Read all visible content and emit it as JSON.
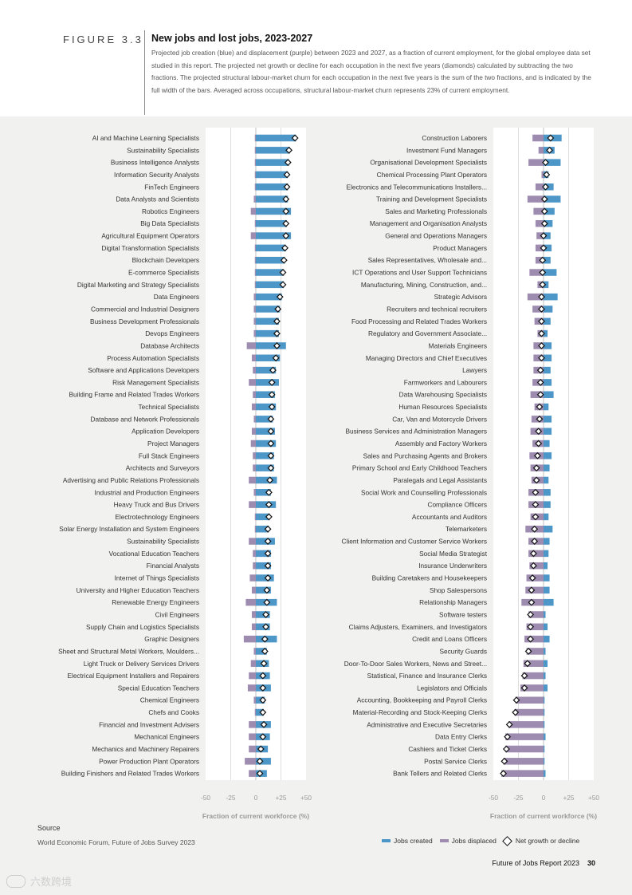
{
  "header": {
    "figure_label": "FIGURE 3.3",
    "title": "New jobs and lost jobs, 2023-2027",
    "description": "Projected job creation (blue) and displacement (purple) between 2023 and 2027, as a fraction of current employment, for the global employee data set studied in this report. The projected net growth or decline for each occupation in the next five years (diamonds) calculated by subtracting the two fractions. The projected structural labour-market churn for each occupation in the next five years is the sum of the two fractions, and is indicated by the full width of the bars. Averaged across occupations, structural labour-market churn represents 23% of current employment."
  },
  "colors": {
    "created": "#4d97c8",
    "displaced": "#9d8cb0",
    "net": "#111111"
  },
  "chart_data": [
    {
      "type": "bar",
      "xlabel": "Fraction of current workforce (%)",
      "xlim": [
        -50,
        50
      ],
      "xticks": [
        "-50",
        "-25",
        "0",
        "+25",
        "+50"
      ],
      "series": [
        {
          "name": "Jobs created"
        },
        {
          "name": "Jobs displaced"
        },
        {
          "name": "Net growth or decline"
        }
      ],
      "rows": [
        {
          "label": "AI and Machine Learning Specialists",
          "created": 40,
          "displaced": 1
        },
        {
          "label": "Sustainability Specialists",
          "created": 34,
          "displaced": 1
        },
        {
          "label": "Business Intelligence Analysts",
          "created": 33,
          "displaced": 1
        },
        {
          "label": "Information Security Analysts",
          "created": 32,
          "displaced": 1
        },
        {
          "label": "FinTech Engineers",
          "created": 32,
          "displaced": 1
        },
        {
          "label": "Data Analysts and Scientists",
          "created": 32,
          "displaced": 2
        },
        {
          "label": "Robotics Engineers",
          "created": 35,
          "displaced": 5
        },
        {
          "label": "Big Data Specialists",
          "created": 31,
          "displaced": 1
        },
        {
          "label": "Agricultural Equipment Operators",
          "created": 35,
          "displaced": 5
        },
        {
          "label": "Digital Transformation Specialists",
          "created": 30,
          "displaced": 1
        },
        {
          "label": "Blockchain Developers",
          "created": 29,
          "displaced": 1
        },
        {
          "label": "E-commerce Specialists",
          "created": 28,
          "displaced": 1
        },
        {
          "label": "Digital Marketing and Strategy Specialists",
          "created": 28,
          "displaced": 1
        },
        {
          "label": "Data Engineers",
          "created": 26,
          "displaced": 2
        },
        {
          "label": "Commercial and Industrial Designers",
          "created": 24,
          "displaced": 2
        },
        {
          "label": "Business Development Professionals",
          "created": 23,
          "displaced": 2
        },
        {
          "label": "Devops Engineers",
          "created": 23,
          "displaced": 2
        },
        {
          "label": "Database Architects",
          "created": 30,
          "displaced": 9
        },
        {
          "label": "Process Automation Specialists",
          "created": 24,
          "displaced": 4
        },
        {
          "label": "Software and Applications Developers",
          "created": 20,
          "displaced": 3
        },
        {
          "label": "Risk Management Specialists",
          "created": 23,
          "displaced": 7
        },
        {
          "label": "Building Frame and Related Trades Workers",
          "created": 19,
          "displaced": 3
        },
        {
          "label": "Technical Specialists",
          "created": 20,
          "displaced": 4
        },
        {
          "label": "Database and Network Professionals",
          "created": 17,
          "displaced": 2
        },
        {
          "label": "Application Developers",
          "created": 19,
          "displaced": 4
        },
        {
          "label": "Project Managers",
          "created": 20,
          "displaced": 5
        },
        {
          "label": "Full Stack Engineers",
          "created": 18,
          "displaced": 3
        },
        {
          "label": "Architects and Surveyors",
          "created": 18,
          "displaced": 3
        },
        {
          "label": "Advertising and Public Relations Professionals",
          "created": 21,
          "displaced": 7
        },
        {
          "label": "Industrial and Production Engineers",
          "created": 15,
          "displaced": 2
        },
        {
          "label": "Heavy Truck and Bus Drivers",
          "created": 20,
          "displaced": 7
        },
        {
          "label": "Electrotechnology Engineers",
          "created": 14,
          "displaced": 1
        },
        {
          "label": "Solar Energy Installation and System Engineers",
          "created": 13,
          "displaced": 1
        },
        {
          "label": "Sustainability Specialists",
          "created": 19,
          "displaced": 7
        },
        {
          "label": "Vocational Education Teachers",
          "created": 15,
          "displaced": 3
        },
        {
          "label": "Financial Analysts",
          "created": 15,
          "displaced": 3
        },
        {
          "label": "Internet of Things Specialists",
          "created": 18,
          "displaced": 6
        },
        {
          "label": "University and Higher Education Teachers",
          "created": 15,
          "displaced": 4
        },
        {
          "label": "Renewable Energy Engineers",
          "created": 21,
          "displaced": 10
        },
        {
          "label": "Civil Engineers",
          "created": 14,
          "displaced": 4
        },
        {
          "label": "Supply Chain and Logistics Specialists",
          "created": 14,
          "displaced": 4
        },
        {
          "label": "Graphic Designers",
          "created": 21,
          "displaced": 12
        },
        {
          "label": "Sheet and Structural Metal Workers, Moulders...",
          "created": 11,
          "displaced": 2
        },
        {
          "label": "Light Truck or Delivery Services Drivers",
          "created": 13,
          "displaced": 5
        },
        {
          "label": "Electrical Equipment Installers and Repairers",
          "created": 14,
          "displaced": 7
        },
        {
          "label": "Special Education Teachers",
          "created": 15,
          "displaced": 8
        },
        {
          "label": "Chemical Engineers",
          "created": 9,
          "displaced": 2
        },
        {
          "label": "Chefs and Cooks",
          "created": 8,
          "displaced": 1
        },
        {
          "label": "Financial and Investment Advisers",
          "created": 15,
          "displaced": 7
        },
        {
          "label": "Mechanical Engineers",
          "created": 14,
          "displaced": 7
        },
        {
          "label": "Mechanics and Machinery Repairers",
          "created": 12,
          "displaced": 7
        },
        {
          "label": "Power Production Plant Operators",
          "created": 15,
          "displaced": 11
        },
        {
          "label": "Building Finishers and Related Trades Workers",
          "created": 11,
          "displaced": 7
        }
      ]
    },
    {
      "type": "bar",
      "xlabel": "Fraction of current workforce (%)",
      "xlim": [
        -50,
        50
      ],
      "xticks": [
        "-50",
        "-25",
        "0",
        "+25",
        "+50"
      ],
      "series": [
        {
          "name": "Jobs created"
        },
        {
          "name": "Jobs displaced"
        },
        {
          "name": "Net growth or decline"
        }
      ],
      "rows": [
        {
          "label": "Construction Laborers",
          "created": 18,
          "displaced": 11
        },
        {
          "label": "Investment Fund Managers",
          "created": 11,
          "displaced": 5
        },
        {
          "label": "Organisational Development Specialists",
          "created": 17,
          "displaced": 15
        },
        {
          "label": "Chemical Processing Plant Operators",
          "created": 5,
          "displaced": 2
        },
        {
          "label": "Electronics and Telecommunications Installers...",
          "created": 10,
          "displaced": 8
        },
        {
          "label": "Training and Development Specialists",
          "created": 17,
          "displaced": 16
        },
        {
          "label": "Sales and Marketing Professionals",
          "created": 11,
          "displaced": 10
        },
        {
          "label": "Management and Organisation Analysts",
          "created": 9,
          "displaced": 8
        },
        {
          "label": "General and Operations Managers",
          "created": 7,
          "displaced": 7
        },
        {
          "label": "Product Managers",
          "created": 8,
          "displaced": 8
        },
        {
          "label": "Sales Representatives, Wholesale and...",
          "created": 7,
          "displaced": 8
        },
        {
          "label": "ICT Operations and User Support Technicians",
          "created": 13,
          "displaced": 14
        },
        {
          "label": "Manufacturing, Mining, Construction, and...",
          "created": 5,
          "displaced": 6
        },
        {
          "label": "Strategic Advisors",
          "created": 14,
          "displaced": 16
        },
        {
          "label": "Recruiters and technical recruiters",
          "created": 9,
          "displaced": 11
        },
        {
          "label": "Food Processing and Related Trades Workers",
          "created": 7,
          "displaced": 9
        },
        {
          "label": "Regulatory and Government Associate...",
          "created": 4,
          "displaced": 6
        },
        {
          "label": "Materials Engineers",
          "created": 8,
          "displaced": 10
        },
        {
          "label": "Managing Directors and Chief Executives",
          "created": 8,
          "displaced": 10
        },
        {
          "label": "Lawyers",
          "created": 7,
          "displaced": 10
        },
        {
          "label": "Farmworkers and Labourers",
          "created": 8,
          "displaced": 11
        },
        {
          "label": "Data Warehousing Specialists",
          "created": 10,
          "displaced": 13
        },
        {
          "label": "Human Resources Specialists",
          "created": 5,
          "displaced": 9
        },
        {
          "label": "Car, Van and Motorcycle Drivers",
          "created": 8,
          "displaced": 12
        },
        {
          "label": "Business Services and Administration Managers",
          "created": 8,
          "displaced": 13
        },
        {
          "label": "Assembly and Factory Workers",
          "created": 6,
          "displaced": 11
        },
        {
          "label": "Sales and Purchasing Agents and Brokers",
          "created": 8,
          "displaced": 14
        },
        {
          "label": "Primary School and Early Childhood Teachers",
          "created": 6,
          "displaced": 13
        },
        {
          "label": "Paralegals and Legal Assistants",
          "created": 5,
          "displaced": 12
        },
        {
          "label": "Social Work and Counselling Professionals",
          "created": 7,
          "displaced": 15
        },
        {
          "label": "Compliance Officers",
          "created": 7,
          "displaced": 15
        },
        {
          "label": "Accountants and Auditors",
          "created": 5,
          "displaced": 13
        },
        {
          "label": "Telemarketers",
          "created": 9,
          "displaced": 18
        },
        {
          "label": "Client Information and Customer Service Workers",
          "created": 6,
          "displaced": 15
        },
        {
          "label": "Social Media Strategist",
          "created": 5,
          "displaced": 15
        },
        {
          "label": "Insurance Underwriters",
          "created": 4,
          "displaced": 14
        },
        {
          "label": "Building Caretakers and Housekeepers",
          "created": 6,
          "displaced": 17
        },
        {
          "label": "Shop Salespersons",
          "created": 6,
          "displaced": 18
        },
        {
          "label": "Relationship Managers",
          "created": 10,
          "displaced": 22
        },
        {
          "label": "Software testers",
          "created": 2,
          "displaced": 15
        },
        {
          "label": "Claims Adjusters, Examiners, and Investigators",
          "created": 4,
          "displaced": 17
        },
        {
          "label": "Credit and Loans Officers",
          "created": 6,
          "displaced": 19
        },
        {
          "label": "Security Guards",
          "created": 2,
          "displaced": 17
        },
        {
          "label": "Door-To-Door Sales Workers, News and Street...",
          "created": 4,
          "displaced": 20
        },
        {
          "label": "Statistical, Finance and Insurance Clerks",
          "created": 2,
          "displaced": 21
        },
        {
          "label": "Legislators and Officials",
          "created": 4,
          "displaced": 23
        },
        {
          "label": "Accounting, Bookkeeping and Payroll Clerks",
          "created": 1,
          "displaced": 28
        },
        {
          "label": "Material-Recording and Stock-Keeping Clerks",
          "created": 1,
          "displaced": 29
        },
        {
          "label": "Administrative and Executive Secretaries",
          "created": 1,
          "displaced": 35
        },
        {
          "label": "Data Entry Clerks",
          "created": 2,
          "displaced": 38
        },
        {
          "label": "Cashiers and Ticket Clerks",
          "created": 1,
          "displaced": 38
        },
        {
          "label": "Postal Service Clerks",
          "created": 1,
          "displaced": 40
        },
        {
          "label": "Bank Tellers and Related Clerks",
          "created": 2,
          "displaced": 42
        }
      ]
    }
  ],
  "source": {
    "label": "Source",
    "text": "World Economic Forum, Future of Jobs Survey 2023"
  },
  "legend": {
    "created": "Jobs created",
    "displaced": "Jobs displaced",
    "net": "Net growth or decline"
  },
  "footer": {
    "report": "Future of Jobs Report 2023",
    "page": "30"
  },
  "watermark": {
    "text": "六数跨境"
  }
}
